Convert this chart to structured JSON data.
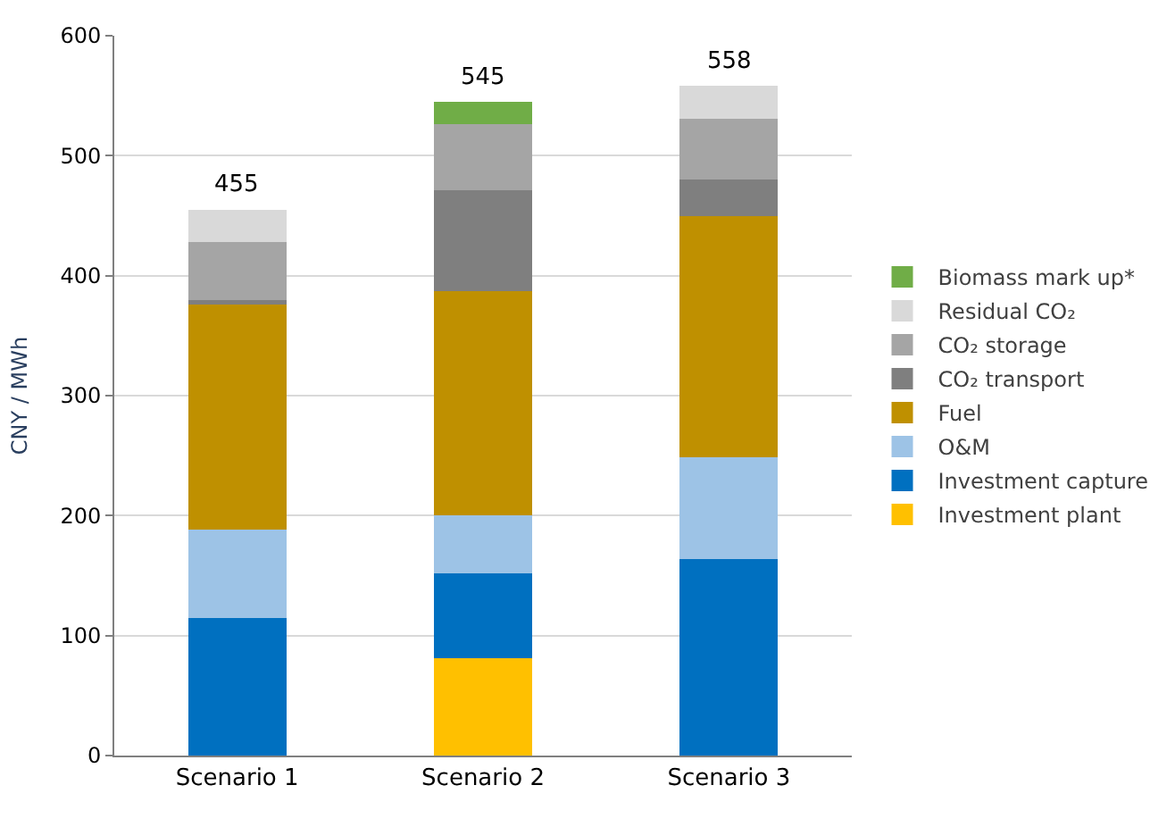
{
  "chart_data": {
    "type": "bar",
    "stacked": true,
    "ylabel": "CNY / MWh",
    "categories": [
      "Scenario 1",
      "Scenario 2",
      "Scenario 3"
    ],
    "series": [
      {
        "name": "Investment plant",
        "color": "#ffc000",
        "values": [
          null,
          81,
          null
        ]
      },
      {
        "name": "Investment capture",
        "color": "#0070c0",
        "values": [
          115,
          71,
          164
        ]
      },
      {
        "name": "O&M",
        "color": "#9dc3e6",
        "values": [
          73,
          48,
          85
        ]
      },
      {
        "name": "Fuel",
        "color": "#bf9000",
        "values": [
          188,
          187,
          201
        ]
      },
      {
        "name": "CO₂ transport",
        "color": "#7f7f7f",
        "values": [
          4,
          84,
          30
        ]
      },
      {
        "name": "CO₂ storage",
        "color": "#a5a5a5",
        "values": [
          48,
          55,
          51
        ]
      },
      {
        "name": "Residual CO₂",
        "color": "#d9d9d9",
        "values": [
          27,
          null,
          27
        ]
      },
      {
        "name": "Biomass mark up*",
        "color": "#70ad47",
        "values": [
          null,
          19,
          null
        ]
      }
    ],
    "totals": [
      "455",
      "545",
      "558"
    ],
    "ylim": [
      0,
      600
    ],
    "yticks": [
      0,
      100,
      200,
      300,
      400,
      500,
      600
    ],
    "grid": "y",
    "legend": "right"
  }
}
